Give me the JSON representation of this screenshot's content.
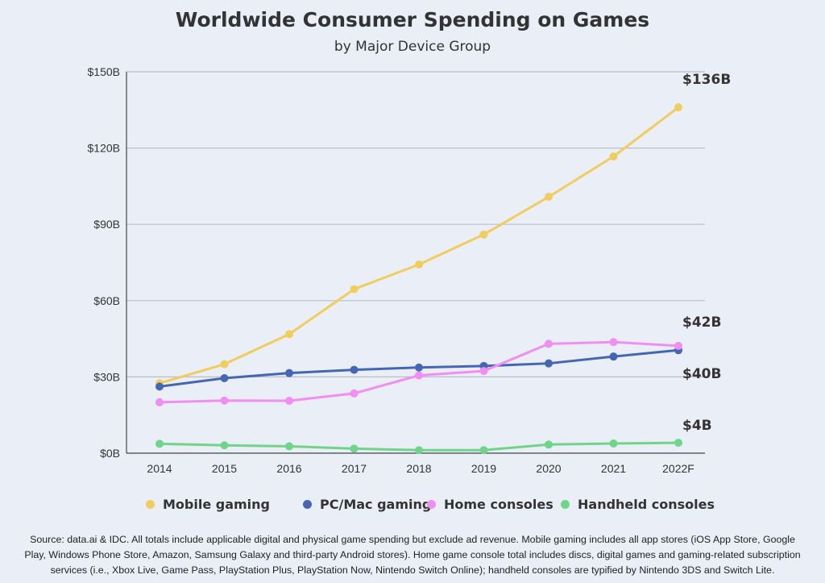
{
  "chart_data": {
    "type": "line",
    "title": "Worldwide Consumer Spending on Games",
    "subtitle": "by Major Device Group",
    "categories": [
      "2014",
      "2015",
      "2016",
      "2017",
      "2018",
      "2019",
      "2020",
      "2021",
      "2022F"
    ],
    "y_ticks": [
      "$0B",
      "$30B",
      "$60B",
      "$90B",
      "$120B",
      "$150B"
    ],
    "ylim": [
      0,
      150
    ],
    "grid": true,
    "legend_placement": "bottom",
    "series": [
      {
        "name": "Mobile gaming",
        "color": "#f0cd5c",
        "values": [
          27.5,
          35,
          46.8,
          64.5,
          74.2,
          86,
          100.8,
          116.7,
          136
        ]
      },
      {
        "name": "PC/Mac gaming",
        "color": "#4466b3",
        "values": [
          26.2,
          29.5,
          31.5,
          32.8,
          33.7,
          34.3,
          35.3,
          38,
          40.5
        ]
      },
      {
        "name": "Home consoles",
        "color": "#f18ef2",
        "values": [
          20,
          20.7,
          20.6,
          23.5,
          30.6,
          32.3,
          43,
          43.7,
          42.2
        ]
      },
      {
        "name": "Handheld consoles",
        "color": "#6fd58a",
        "values": [
          3.7,
          3.1,
          2.7,
          1.8,
          1.2,
          1.2,
          3.4,
          3.8,
          4.1
        ]
      }
    ],
    "end_labels": [
      "$136B",
      "$42B",
      "$40B",
      "$4B"
    ]
  },
  "source_lines": [
    "Source: data.ai & IDC. All totals include applicable digital and physical game spending but exclude ad revenue. Mobile gaming includes all app stores (iOS App Store, Google",
    "Play, Windows Phone Store, Amazon, Samsung Galaxy and third-party Android stores). Home game console total includes discs, digital games and gaming-related subscription",
    "services (i.e., Xbox Live, Game Pass, PlayStation Plus, PlayStation Now, Nintendo Switch Online); handheld consoles are typified by Nintendo 3DS and Switch Lite."
  ]
}
